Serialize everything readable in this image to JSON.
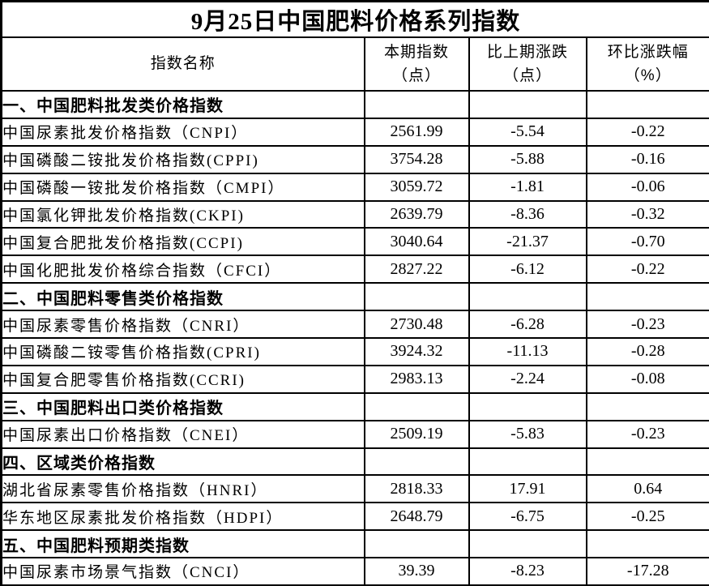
{
  "table": {
    "title": "9月25日中国肥料价格系列指数",
    "columns": [
      {
        "label": "指数名称",
        "sub": ""
      },
      {
        "label": "本期指数",
        "sub": "（点）"
      },
      {
        "label": "比上期涨跌",
        "sub": "（点）"
      },
      {
        "label": "环比涨跌幅",
        "sub": "（%）"
      }
    ],
    "rows": [
      {
        "type": "section",
        "name": "一、中国肥料批发类价格指数",
        "current": "",
        "change": "",
        "pct": ""
      },
      {
        "type": "data",
        "name": "中国尿素批发价格指数（CNPI）",
        "current": "2561.99",
        "change": "-5.54",
        "pct": "-0.22"
      },
      {
        "type": "data",
        "name": "中国磷酸二铵批发价格指数(CPPI)",
        "current": "3754.28",
        "change": "-5.88",
        "pct": "-0.16"
      },
      {
        "type": "data",
        "name": "中国磷酸一铵批发价格指数（CMPI）",
        "current": "3059.72",
        "change": "-1.81",
        "pct": "-0.06"
      },
      {
        "type": "data",
        "name": "中国氯化钾批发价格指数(CKPI)",
        "current": "2639.79",
        "change": "-8.36",
        "pct": "-0.32"
      },
      {
        "type": "data",
        "name": "中国复合肥批发价格指数(CCPI)",
        "current": "3040.64",
        "change": "-21.37",
        "pct": "-0.70"
      },
      {
        "type": "data",
        "name": "中国化肥批发价格综合指数（CFCI）",
        "current": "2827.22",
        "change": "-6.12",
        "pct": "-0.22"
      },
      {
        "type": "section",
        "name": "二、中国肥料零售类价格指数",
        "current": "",
        "change": "",
        "pct": ""
      },
      {
        "type": "data",
        "name": "中国尿素零售价格指数（CNRI）",
        "current": "2730.48",
        "change": "-6.28",
        "pct": "-0.23"
      },
      {
        "type": "data",
        "name": "中国磷酸二铵零售价格指数(CPRI)",
        "current": "3924.32",
        "change": "-11.13",
        "pct": "-0.28"
      },
      {
        "type": "data",
        "name": "中国复合肥零售价格指数(CCRI)",
        "current": "2983.13",
        "change": "-2.24",
        "pct": "-0.08"
      },
      {
        "type": "section",
        "name": "三、中国肥料出口类价格指数",
        "current": "",
        "change": "",
        "pct": ""
      },
      {
        "type": "data",
        "name": "中国尿素出口价格指数（CNEI）",
        "current": "2509.19",
        "change": "-5.83",
        "pct": "-0.23"
      },
      {
        "type": "section",
        "name": "四、区域类价格指数",
        "current": "",
        "change": "",
        "pct": ""
      },
      {
        "type": "data",
        "name": "湖北省尿素零售价格指数（HNRI）",
        "current": "2818.33",
        "change": "17.91",
        "pct": "0.64"
      },
      {
        "type": "data",
        "name": "华东地区尿素批发价格指数（HDPI）",
        "current": "2648.79",
        "change": "-6.75",
        "pct": "-0.25"
      },
      {
        "type": "section",
        "name": "五、中国肥料预期类指数",
        "current": "",
        "change": "",
        "pct": ""
      },
      {
        "type": "data",
        "name": "中国尿素市场景气指数（CNCI）",
        "current": "39.39",
        "change": "-8.23",
        "pct": "-17.28"
      }
    ]
  },
  "chart_data": {
    "type": "table",
    "title": "9月25日中国肥料价格系列指数",
    "columns": [
      "指数名称",
      "本期指数（点）",
      "比上期涨跌（点）",
      "环比涨跌幅（%）"
    ],
    "sections": [
      {
        "section": "一、中国肥料批发类价格指数",
        "rows": [
          {
            "name": "中国尿素批发价格指数（CNPI）",
            "current": 2561.99,
            "change": -5.54,
            "pct": -0.22
          },
          {
            "name": "中国磷酸二铵批发价格指数(CPPI)",
            "current": 3754.28,
            "change": -5.88,
            "pct": -0.16
          },
          {
            "name": "中国磷酸一铵批发价格指数（CMPI）",
            "current": 3059.72,
            "change": -1.81,
            "pct": -0.06
          },
          {
            "name": "中国氯化钾批发价格指数(CKPI)",
            "current": 2639.79,
            "change": -8.36,
            "pct": -0.32
          },
          {
            "name": "中国复合肥批发价格指数(CCPI)",
            "current": 3040.64,
            "change": -21.37,
            "pct": -0.7
          },
          {
            "name": "中国化肥批发价格综合指数（CFCI）",
            "current": 2827.22,
            "change": -6.12,
            "pct": -0.22
          }
        ]
      },
      {
        "section": "二、中国肥料零售类价格指数",
        "rows": [
          {
            "name": "中国尿素零售价格指数（CNRI）",
            "current": 2730.48,
            "change": -6.28,
            "pct": -0.23
          },
          {
            "name": "中国磷酸二铵零售价格指数(CPRI)",
            "current": 3924.32,
            "change": -11.13,
            "pct": -0.28
          },
          {
            "name": "中国复合肥零售价格指数(CCRI)",
            "current": 2983.13,
            "change": -2.24,
            "pct": -0.08
          }
        ]
      },
      {
        "section": "三、中国肥料出口类价格指数",
        "rows": [
          {
            "name": "中国尿素出口价格指数（CNEI）",
            "current": 2509.19,
            "change": -5.83,
            "pct": -0.23
          }
        ]
      },
      {
        "section": "四、区域类价格指数",
        "rows": [
          {
            "name": "湖北省尿素零售价格指数（HNRI）",
            "current": 2818.33,
            "change": 17.91,
            "pct": 0.64
          },
          {
            "name": "华东地区尿素批发价格指数（HDPI）",
            "current": 2648.79,
            "change": -6.75,
            "pct": -0.25
          }
        ]
      },
      {
        "section": "五、中国肥料预期类指数",
        "rows": [
          {
            "name": "中国尿素市场景气指数（CNCI）",
            "current": 39.39,
            "change": -8.23,
            "pct": -17.28
          }
        ]
      }
    ]
  }
}
